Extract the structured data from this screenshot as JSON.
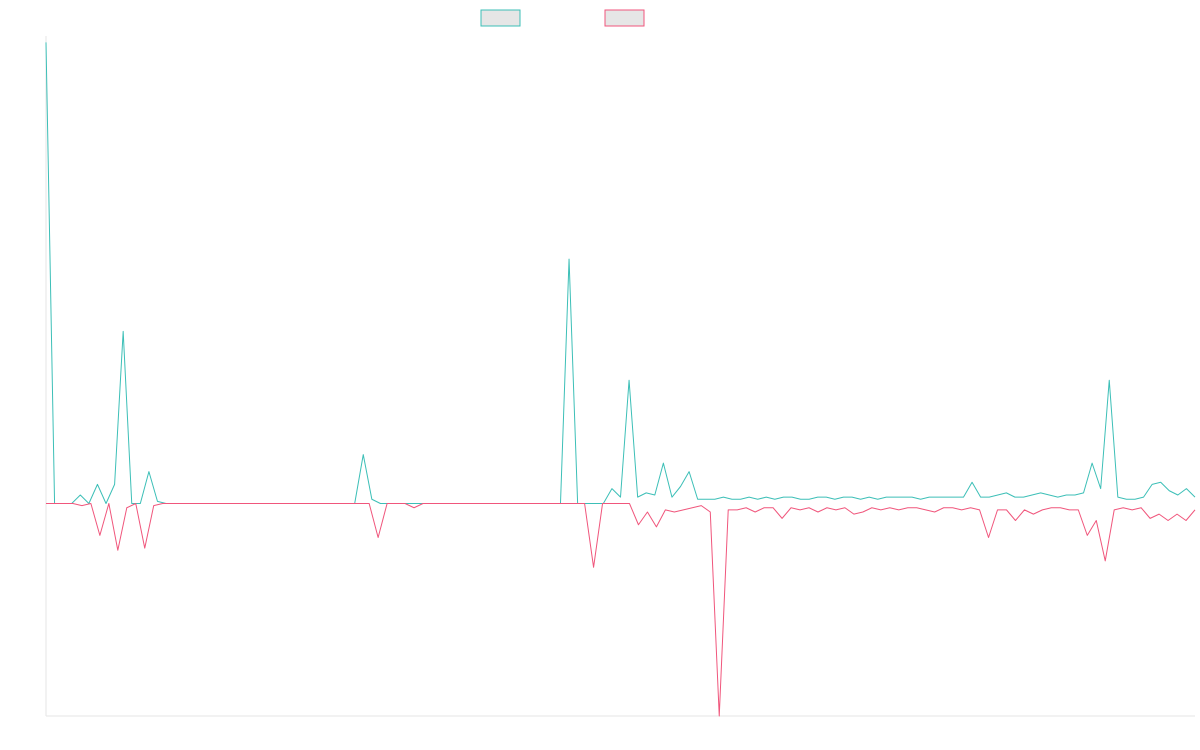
{
  "chart_data": {
    "type": "line",
    "title": "",
    "xlabel": "",
    "ylabel": "",
    "ylim": [
      -1,
      2.2
    ],
    "grid": false,
    "legend": {
      "position": "top-center"
    },
    "series": [
      {
        "color": "#3cbfb7",
        "legend_fill": "#e6e6e6",
        "values": [
          2.17,
          0.0,
          0.0,
          0.0,
          0.04,
          0.0,
          0.09,
          0.0,
          0.09,
          0.81,
          0.0,
          0.0,
          0.15,
          0.01,
          0.0,
          0.0,
          0.0,
          0.0,
          0.0,
          0.0,
          0.0,
          0.0,
          0.0,
          0.0,
          0.0,
          0.0,
          0.0,
          0.0,
          0.0,
          0.0,
          0.0,
          0.0,
          0.0,
          0.0,
          0.0,
          0.0,
          0.0,
          0.23,
          0.02,
          0.0,
          0.0,
          0.0,
          0.0,
          0.0,
          0.0,
          0.0,
          0.0,
          0.0,
          0.0,
          0.0,
          0.0,
          0.0,
          0.0,
          0.0,
          0.0,
          0.0,
          0.0,
          0.0,
          0.0,
          0.0,
          0.0,
          1.15,
          0.0,
          0.0,
          0.0,
          0.0,
          0.07,
          0.03,
          0.58,
          0.03,
          0.05,
          0.04,
          0.19,
          0.03,
          0.08,
          0.15,
          0.02,
          0.02,
          0.02,
          0.03,
          0.02,
          0.02,
          0.03,
          0.02,
          0.03,
          0.02,
          0.03,
          0.03,
          0.02,
          0.02,
          0.03,
          0.03,
          0.02,
          0.03,
          0.03,
          0.02,
          0.03,
          0.02,
          0.03,
          0.03,
          0.03,
          0.03,
          0.02,
          0.03,
          0.03,
          0.03,
          0.03,
          0.03,
          0.1,
          0.03,
          0.03,
          0.04,
          0.05,
          0.03,
          0.03,
          0.04,
          0.05,
          0.04,
          0.03,
          0.04,
          0.04,
          0.05,
          0.19,
          0.07,
          0.58,
          0.03,
          0.02,
          0.02,
          0.03,
          0.09,
          0.1,
          0.06,
          0.04,
          0.07,
          0.03
        ]
      },
      {
        "color": "#f0567c",
        "legend_fill": "#e6e6e6",
        "values": [
          0.0,
          0.0,
          0.0,
          0.0,
          -0.01,
          0.0,
          -0.15,
          0.0,
          -0.22,
          -0.02,
          0.0,
          -0.21,
          -0.01,
          0.0,
          0.0,
          0.0,
          0.0,
          0.0,
          0.0,
          0.0,
          0.0,
          0.0,
          0.0,
          0.0,
          0.0,
          0.0,
          0.0,
          0.0,
          0.0,
          0.0,
          0.0,
          0.0,
          0.0,
          0.0,
          0.0,
          0.0,
          0.0,
          -0.16,
          0.0,
          0.0,
          0.0,
          -0.02,
          0.0,
          0.0,
          0.0,
          0.0,
          0.0,
          0.0,
          0.0,
          0.0,
          0.0,
          0.0,
          0.0,
          0.0,
          0.0,
          0.0,
          0.0,
          0.0,
          0.0,
          0.0,
          0.0,
          -0.3,
          0.0,
          0.0,
          0.0,
          0.0,
          -0.1,
          -0.04,
          -0.11,
          -0.03,
          -0.04,
          -0.03,
          -0.02,
          -0.01,
          -0.04,
          -1.0,
          -0.03,
          -0.03,
          -0.02,
          -0.04,
          -0.02,
          -0.02,
          -0.07,
          -0.02,
          -0.03,
          -0.02,
          -0.04,
          -0.02,
          -0.03,
          -0.02,
          -0.05,
          -0.04,
          -0.02,
          -0.03,
          -0.02,
          -0.03,
          -0.02,
          -0.02,
          -0.03,
          -0.04,
          -0.02,
          -0.02,
          -0.03,
          -0.02,
          -0.03,
          -0.16,
          -0.03,
          -0.03,
          -0.08,
          -0.03,
          -0.05,
          -0.03,
          -0.02,
          -0.02,
          -0.03,
          -0.03,
          -0.15,
          -0.08,
          -0.27,
          -0.03,
          -0.02,
          -0.03,
          -0.02,
          -0.07,
          -0.05,
          -0.08,
          -0.05,
          -0.08,
          -0.03
        ]
      }
    ]
  }
}
